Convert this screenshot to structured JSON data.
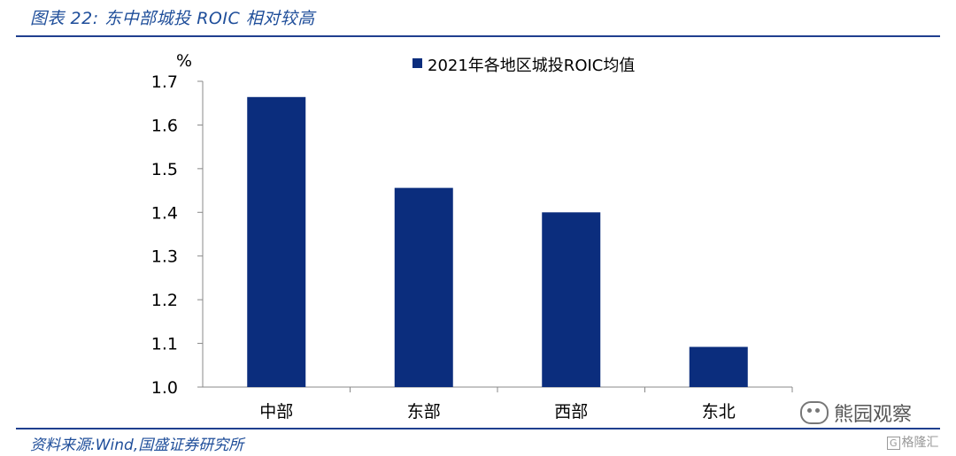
{
  "figure": {
    "title": "图表 22:  东中部城投 ROIC 相对较高",
    "source": "资料来源:Wind,国盛证券研究所",
    "watermark": "熊园观察",
    "corner_mark": "格隆汇",
    "corner_mark_icon": "G"
  },
  "colors": {
    "bar": "#0b2d7d",
    "accent": "#1f4e9a"
  },
  "chart_data": {
    "type": "bar",
    "categories": [
      "中部",
      "东部",
      "西部",
      "东北"
    ],
    "series": [
      {
        "name": "2021年各地区城投ROIC均值",
        "values": [
          1.664,
          1.456,
          1.4,
          1.092
        ]
      }
    ],
    "ylabel": "%",
    "ylim": [
      1.0,
      1.7
    ],
    "yticks": [
      "1.0",
      "1.1",
      "1.2",
      "1.3",
      "1.4",
      "1.5",
      "1.6",
      "1.7"
    ],
    "grid": false,
    "legend_position": "top"
  }
}
